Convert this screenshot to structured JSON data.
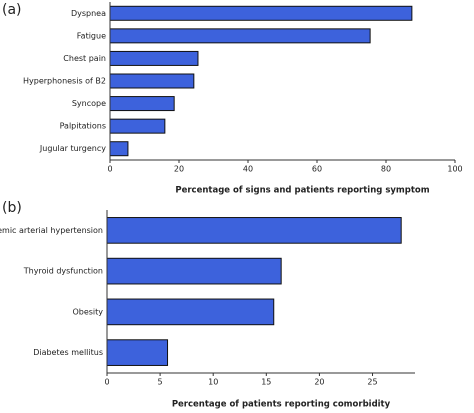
{
  "chart_data": [
    {
      "type": "bar",
      "orientation": "horizontal",
      "label": "(a)",
      "categories": [
        "Dyspnea",
        "Fatigue",
        "Chest pain",
        "Hyperphonesis of B2",
        "Syncope",
        "Palpitations",
        "Jugular turgency"
      ],
      "values": [
        87.5,
        75.4,
        25.5,
        24.3,
        18.6,
        15.9,
        5.2
      ],
      "color": "#3d62dc",
      "xlim": [
        0,
        100
      ],
      "xticks": [
        0,
        20,
        40,
        60,
        80,
        100
      ],
      "xlabel": "Percentage of signs and patients reporting symptom"
    },
    {
      "type": "bar",
      "orientation": "horizontal",
      "label": "(b)",
      "categories": [
        "Systemic arterial hypertension",
        "Thyroid dysfunction",
        "Obesity",
        "Diabetes mellitus"
      ],
      "values": [
        27.7,
        16.4,
        15.7,
        5.7
      ],
      "color": "#3d62dc",
      "xlim": [
        0,
        29
      ],
      "xticks": [
        0,
        5,
        10,
        15,
        20,
        25
      ],
      "xlabel": "Percentage of patients reporting comorbidity"
    }
  ]
}
